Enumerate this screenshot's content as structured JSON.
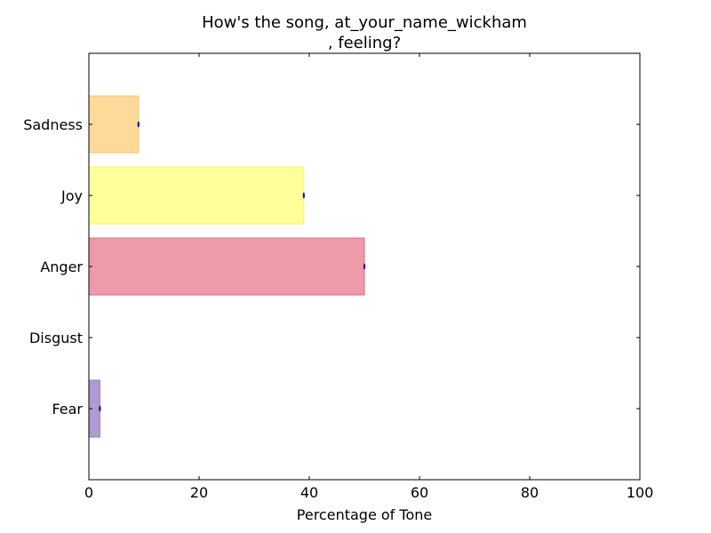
{
  "chart_data": {
    "type": "bar",
    "orientation": "horizontal",
    "title_line1": "How's the song, at_your_name_wickham",
    "title_line2": ", feeling?",
    "xlabel": "Percentage of Tone",
    "ylabel": "",
    "xlim": [
      0,
      100
    ],
    "xticks": [
      "0",
      "20",
      "40",
      "60",
      "80",
      "100"
    ],
    "categories": [
      "Fear",
      "Disgust",
      "Anger",
      "Joy",
      "Sadness"
    ],
    "values": [
      2,
      0,
      50,
      39,
      9
    ],
    "colors": [
      "#b39ad0",
      "#bfbfbf",
      "#ee9aa8",
      "#ffff99",
      "#fed99a"
    ],
    "edge_colors": [
      "#9a7bc0",
      "#999999",
      "#e06a80",
      "#f5f570",
      "#f8c870"
    ],
    "grid": false,
    "legend": "none"
  }
}
